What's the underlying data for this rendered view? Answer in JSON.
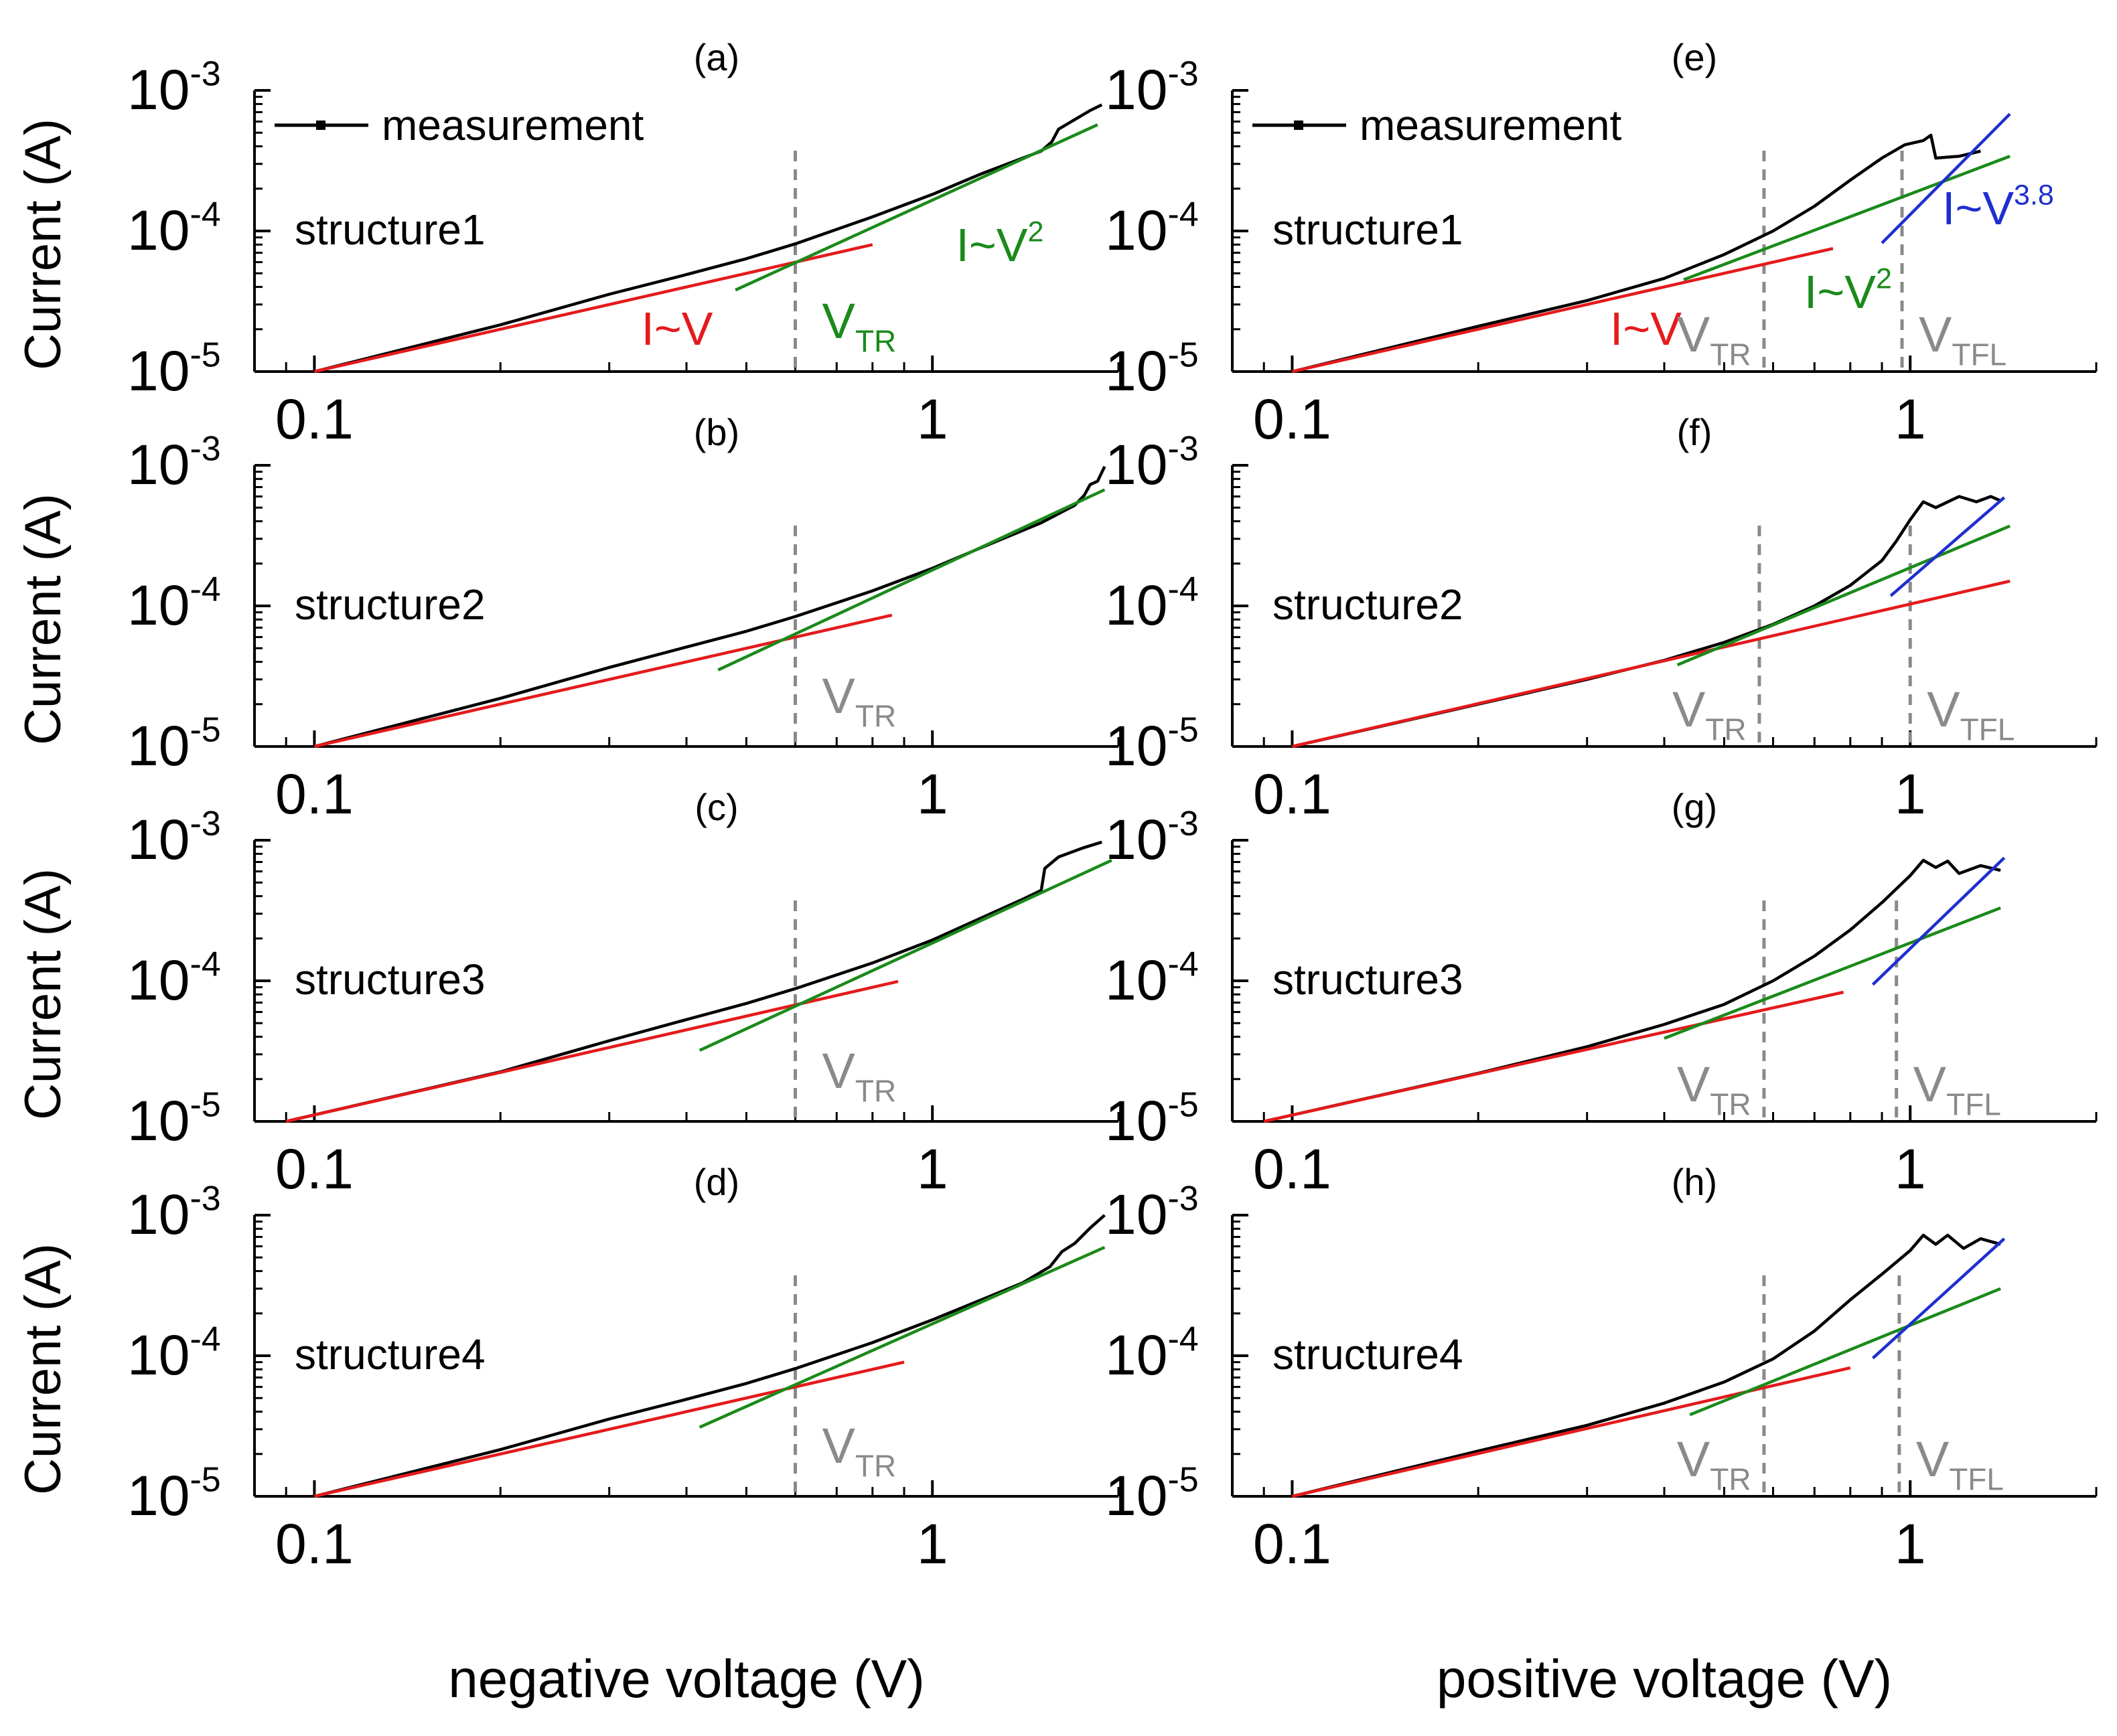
{
  "chart_data": {
    "type": "line",
    "x_scale": "log",
    "y_scale": "log",
    "xlabels": {
      "left": "negative voltage (V)",
      "right": "positive voltage (V)"
    },
    "ylabel": "Current (A)",
    "y_ticks": [
      {
        "value": 1e-05,
        "base": "10",
        "exp": "-5"
      },
      {
        "value": 0.0001,
        "base": "10",
        "exp": "-4"
      },
      {
        "value": 0.001,
        "base": "10",
        "exp": "-3"
      }
    ],
    "x_ticks": [
      {
        "value": 0.1,
        "label": "0.1"
      },
      {
        "value": 1,
        "label": "1"
      }
    ],
    "colors": {
      "measurement": "#000000",
      "ohmic": "#e41a1c",
      "quadratic": "#1a8a1a",
      "tfl": "#1f2fd0",
      "threshold": "#8a8a8a"
    },
    "panels": [
      {
        "id": "a",
        "label": "(a)",
        "structure": "structure1",
        "xlim": [
          0.08,
          2.0
        ],
        "ylim": [
          1e-05,
          0.001
        ],
        "legend": "measurement",
        "measurement": [
          [
            0.1,
            1e-05
          ],
          [
            0.2,
            2.15e-05
          ],
          [
            0.3,
            3.55e-05
          ],
          [
            0.4,
            4.9e-05
          ],
          [
            0.5,
            6.35e-05
          ],
          [
            0.6,
            8.1e-05
          ],
          [
            0.8,
            0.000126
          ],
          [
            1.0,
            0.000182
          ],
          [
            1.2,
            0.000255
          ],
          [
            1.5,
            0.00037
          ],
          [
            1.56,
            0.00043
          ],
          [
            1.6,
            0.00053
          ],
          [
            1.7,
            0.00062
          ],
          [
            1.8,
            0.00072
          ],
          [
            1.88,
            0.00079
          ]
        ],
        "ohmic": [
          [
            0.1,
            1e-05
          ],
          [
            0.8,
            8e-05
          ]
        ],
        "quadratic": [
          [
            0.48,
            3.8e-05
          ],
          [
            1.85,
            0.00057
          ]
        ],
        "tfl": [],
        "vtr": 0.6,
        "vtfl": null,
        "labels": {
          "ohmic": "I~V",
          "quad": "I~V",
          "quad_exp": "2",
          "tfl": "",
          "tfl_exp": "",
          "vtr": "V",
          "vtr_sub": "TR",
          "vtfl": "",
          "vtfl_sub": ""
        }
      },
      {
        "id": "b",
        "label": "(b)",
        "structure": "structure2",
        "xlim": [
          0.08,
          2.0
        ],
        "ylim": [
          1e-05,
          0.001
        ],
        "legend": "",
        "measurement": [
          [
            0.1,
            1e-05
          ],
          [
            0.2,
            2.2e-05
          ],
          [
            0.3,
            3.65e-05
          ],
          [
            0.4,
            5.1e-05
          ],
          [
            0.5,
            6.6e-05
          ],
          [
            0.6,
            8.4e-05
          ],
          [
            0.8,
            0.000128
          ],
          [
            1.0,
            0.000185
          ],
          [
            1.2,
            0.00026
          ],
          [
            1.5,
            0.00039
          ],
          [
            1.7,
            0.00052
          ],
          [
            1.76,
            0.00061
          ],
          [
            1.8,
            0.00073
          ],
          [
            1.85,
            0.00077
          ],
          [
            1.9,
            0.00098
          ]
        ],
        "ohmic": [
          [
            0.1,
            1e-05
          ],
          [
            0.86,
            8.6e-05
          ]
        ],
        "quadratic": [
          [
            0.45,
            3.5e-05
          ],
          [
            1.9,
            0.00067
          ]
        ],
        "tfl": [],
        "vtr": 0.6,
        "vtfl": null,
        "labels": {
          "ohmic": "",
          "quad": "",
          "quad_exp": "",
          "tfl": "",
          "tfl_exp": "",
          "vtr": "V",
          "vtr_sub": "TR",
          "vtfl": "",
          "vtfl_sub": ""
        }
      },
      {
        "id": "c",
        "label": "(c)",
        "structure": "structure3",
        "xlim": [
          0.08,
          2.0
        ],
        "ylim": [
          1e-05,
          0.001
        ],
        "legend": "",
        "measurement": [
          [
            0.09,
            1e-05
          ],
          [
            0.2,
            2.25e-05
          ],
          [
            0.3,
            3.75e-05
          ],
          [
            0.4,
            5.3e-05
          ],
          [
            0.5,
            6.9e-05
          ],
          [
            0.6,
            8.8e-05
          ],
          [
            0.8,
            0.000134
          ],
          [
            1.0,
            0.000195
          ],
          [
            1.2,
            0.00028
          ],
          [
            1.4,
            0.00038
          ],
          [
            1.5,
            0.00044
          ],
          [
            1.52,
            0.00063
          ],
          [
            1.6,
            0.00076
          ],
          [
            1.75,
            0.00088
          ],
          [
            1.88,
            0.00097
          ]
        ],
        "ohmic": [
          [
            0.09,
            1e-05
          ],
          [
            0.88,
            9.9e-05
          ]
        ],
        "quadratic": [
          [
            0.42,
            3.2e-05
          ],
          [
            1.95,
            0.00072
          ]
        ],
        "tfl": [],
        "vtr": 0.6,
        "vtfl": null,
        "labels": {
          "ohmic": "",
          "quad": "",
          "quad_exp": "",
          "tfl": "",
          "tfl_exp": "",
          "vtr": "V",
          "vtr_sub": "TR",
          "vtfl": "",
          "vtfl_sub": ""
        }
      },
      {
        "id": "d",
        "label": "(d)",
        "structure": "structure4",
        "xlim": [
          0.08,
          2.0
        ],
        "ylim": [
          1e-05,
          0.001
        ],
        "legend": "",
        "measurement": [
          [
            0.1,
            1e-05
          ],
          [
            0.2,
            2.15e-05
          ],
          [
            0.3,
            3.55e-05
          ],
          [
            0.4,
            4.9e-05
          ],
          [
            0.5,
            6.35e-05
          ],
          [
            0.6,
            8.1e-05
          ],
          [
            0.8,
            0.000124
          ],
          [
            1.0,
            0.00018
          ],
          [
            1.2,
            0.00025
          ],
          [
            1.4,
            0.00033
          ],
          [
            1.55,
            0.00043
          ],
          [
            1.62,
            0.00055
          ],
          [
            1.7,
            0.00063
          ],
          [
            1.8,
            0.00081
          ],
          [
            1.9,
            0.001
          ]
        ],
        "ohmic": [
          [
            0.1,
            1e-05
          ],
          [
            0.9,
            9e-05
          ]
        ],
        "quadratic": [
          [
            0.42,
            3.1e-05
          ],
          [
            1.9,
            0.00059
          ]
        ],
        "tfl": [],
        "vtr": 0.6,
        "vtfl": null,
        "labels": {
          "ohmic": "",
          "quad": "",
          "quad_exp": "",
          "tfl": "",
          "tfl_exp": "",
          "vtr": "V",
          "vtr_sub": "TR",
          "vtfl": "",
          "vtfl_sub": ""
        }
      },
      {
        "id": "e",
        "label": "(e)",
        "structure": "structure1",
        "xlim": [
          0.08,
          2.0
        ],
        "ylim": [
          1e-05,
          0.001
        ],
        "legend": "measurement",
        "measurement": [
          [
            0.1,
            1e-05
          ],
          [
            0.2,
            2.1e-05
          ],
          [
            0.3,
            3.2e-05
          ],
          [
            0.4,
            4.6e-05
          ],
          [
            0.5,
            6.8e-05
          ],
          [
            0.6,
            0.0001
          ],
          [
            0.7,
            0.00015
          ],
          [
            0.8,
            0.00023
          ],
          [
            0.9,
            0.00033
          ],
          [
            0.98,
            0.00041
          ],
          [
            1.05,
            0.00044
          ],
          [
            1.08,
            0.00048
          ],
          [
            1.1,
            0.00033
          ],
          [
            1.2,
            0.00034
          ],
          [
            1.3,
            0.00037
          ]
        ],
        "ohmic": [
          [
            0.1,
            1e-05
          ],
          [
            0.75,
            7.5e-05
          ]
        ],
        "quadratic": [
          [
            0.43,
            4.5e-05
          ],
          [
            1.45,
            0.00034
          ]
        ],
        "tfl": [
          [
            0.9,
            8.2e-05
          ],
          [
            1.45,
            0.00068
          ]
        ],
        "vtr": 0.58,
        "vtfl": 0.97,
        "labels": {
          "ohmic": "I~V",
          "quad": "I~V",
          "quad_exp": "2",
          "tfl": "I~V",
          "tfl_exp": "3.8",
          "vtr": "V",
          "vtr_sub": "TR",
          "vtfl": "V",
          "vtfl_sub": "TFL"
        }
      },
      {
        "id": "f",
        "label": "(f)",
        "structure": "structure2",
        "xlim": [
          0.08,
          2.0
        ],
        "ylim": [
          1e-05,
          0.001
        ],
        "legend": "",
        "measurement": [
          [
            0.1,
            1e-05
          ],
          [
            0.2,
            2e-05
          ],
          [
            0.3,
            3e-05
          ],
          [
            0.4,
            4.1e-05
          ],
          [
            0.5,
            5.5e-05
          ],
          [
            0.6,
            7.4e-05
          ],
          [
            0.7,
            0.0001
          ],
          [
            0.8,
            0.00014
          ],
          [
            0.9,
            0.00021
          ],
          [
            0.95,
            0.00029
          ],
          [
            1.0,
            0.00041
          ],
          [
            1.05,
            0.00055
          ],
          [
            1.1,
            0.0005
          ],
          [
            1.2,
            0.0006
          ],
          [
            1.28,
            0.00055
          ],
          [
            1.35,
            0.0006
          ],
          [
            1.4,
            0.00056
          ]
        ],
        "ohmic": [
          [
            0.1,
            1e-05
          ],
          [
            1.45,
            0.00015
          ]
        ],
        "quadratic": [
          [
            0.42,
            3.8e-05
          ],
          [
            1.45,
            0.00037
          ]
        ],
        "tfl": [
          [
            0.93,
            0.000118
          ],
          [
            1.42,
            0.00059
          ]
        ],
        "vtr": 0.57,
        "vtfl": 1.0,
        "labels": {
          "ohmic": "",
          "quad": "",
          "quad_exp": "",
          "tfl": "",
          "tfl_exp": "",
          "vtr": "V",
          "vtr_sub": "TR",
          "vtfl": "V",
          "vtfl_sub": "TFL"
        }
      },
      {
        "id": "g",
        "label": "(g)",
        "structure": "structure3",
        "xlim": [
          0.08,
          2.0
        ],
        "ylim": [
          1e-05,
          0.001
        ],
        "legend": "",
        "measurement": [
          [
            0.09,
            1e-05
          ],
          [
            0.2,
            2.2e-05
          ],
          [
            0.3,
            3.4e-05
          ],
          [
            0.4,
            4.9e-05
          ],
          [
            0.5,
            6.8e-05
          ],
          [
            0.6,
            0.0001
          ],
          [
            0.7,
            0.00015
          ],
          [
            0.8,
            0.00023
          ],
          [
            0.9,
            0.00036
          ],
          [
            1.0,
            0.00056
          ],
          [
            1.05,
            0.00072
          ],
          [
            1.1,
            0.00064
          ],
          [
            1.15,
            0.00071
          ],
          [
            1.2,
            0.00058
          ],
          [
            1.3,
            0.00066
          ],
          [
            1.4,
            0.00061
          ]
        ],
        "ohmic": [
          [
            0.09,
            1e-05
          ],
          [
            0.78,
            8.3e-05
          ]
        ],
        "quadratic": [
          [
            0.4,
            3.9e-05
          ],
          [
            1.4,
            0.00033
          ]
        ],
        "tfl": [
          [
            0.87,
            9.4e-05
          ],
          [
            1.42,
            0.00075
          ]
        ],
        "vtr": 0.58,
        "vtfl": 0.95,
        "labels": {
          "ohmic": "",
          "quad": "",
          "quad_exp": "",
          "tfl": "",
          "tfl_exp": "",
          "vtr": "V",
          "vtr_sub": "TR",
          "vtfl": "V",
          "vtfl_sub": "TFL"
        }
      },
      {
        "id": "h",
        "label": "(h)",
        "structure": "structure4",
        "xlim": [
          0.08,
          2.0
        ],
        "ylim": [
          1e-05,
          0.001
        ],
        "legend": "",
        "measurement": [
          [
            0.1,
            1e-05
          ],
          [
            0.2,
            2.1e-05
          ],
          [
            0.3,
            3.2e-05
          ],
          [
            0.4,
            4.6e-05
          ],
          [
            0.5,
            6.5e-05
          ],
          [
            0.6,
            9.5e-05
          ],
          [
            0.7,
            0.00015
          ],
          [
            0.8,
            0.00025
          ],
          [
            0.9,
            0.00038
          ],
          [
            1.0,
            0.00056
          ],
          [
            1.05,
            0.00072
          ],
          [
            1.1,
            0.00062
          ],
          [
            1.15,
            0.00072
          ],
          [
            1.22,
            0.00058
          ],
          [
            1.3,
            0.00068
          ],
          [
            1.4,
            0.00062
          ]
        ],
        "ohmic": [
          [
            0.1,
            1e-05
          ],
          [
            0.8,
            8.2e-05
          ]
        ],
        "quadratic": [
          [
            0.44,
            3.8e-05
          ],
          [
            1.4,
            0.0003
          ]
        ],
        "tfl": [
          [
            0.87,
            9.6e-05
          ],
          [
            1.42,
            0.00068
          ]
        ],
        "vtr": 0.58,
        "vtfl": 0.96,
        "labels": {
          "ohmic": "",
          "quad": "",
          "quad_exp": "",
          "tfl": "",
          "tfl_exp": "",
          "vtr": "V",
          "vtr_sub": "TR",
          "vtfl": "V",
          "vtfl_sub": "TFL"
        }
      }
    ]
  }
}
